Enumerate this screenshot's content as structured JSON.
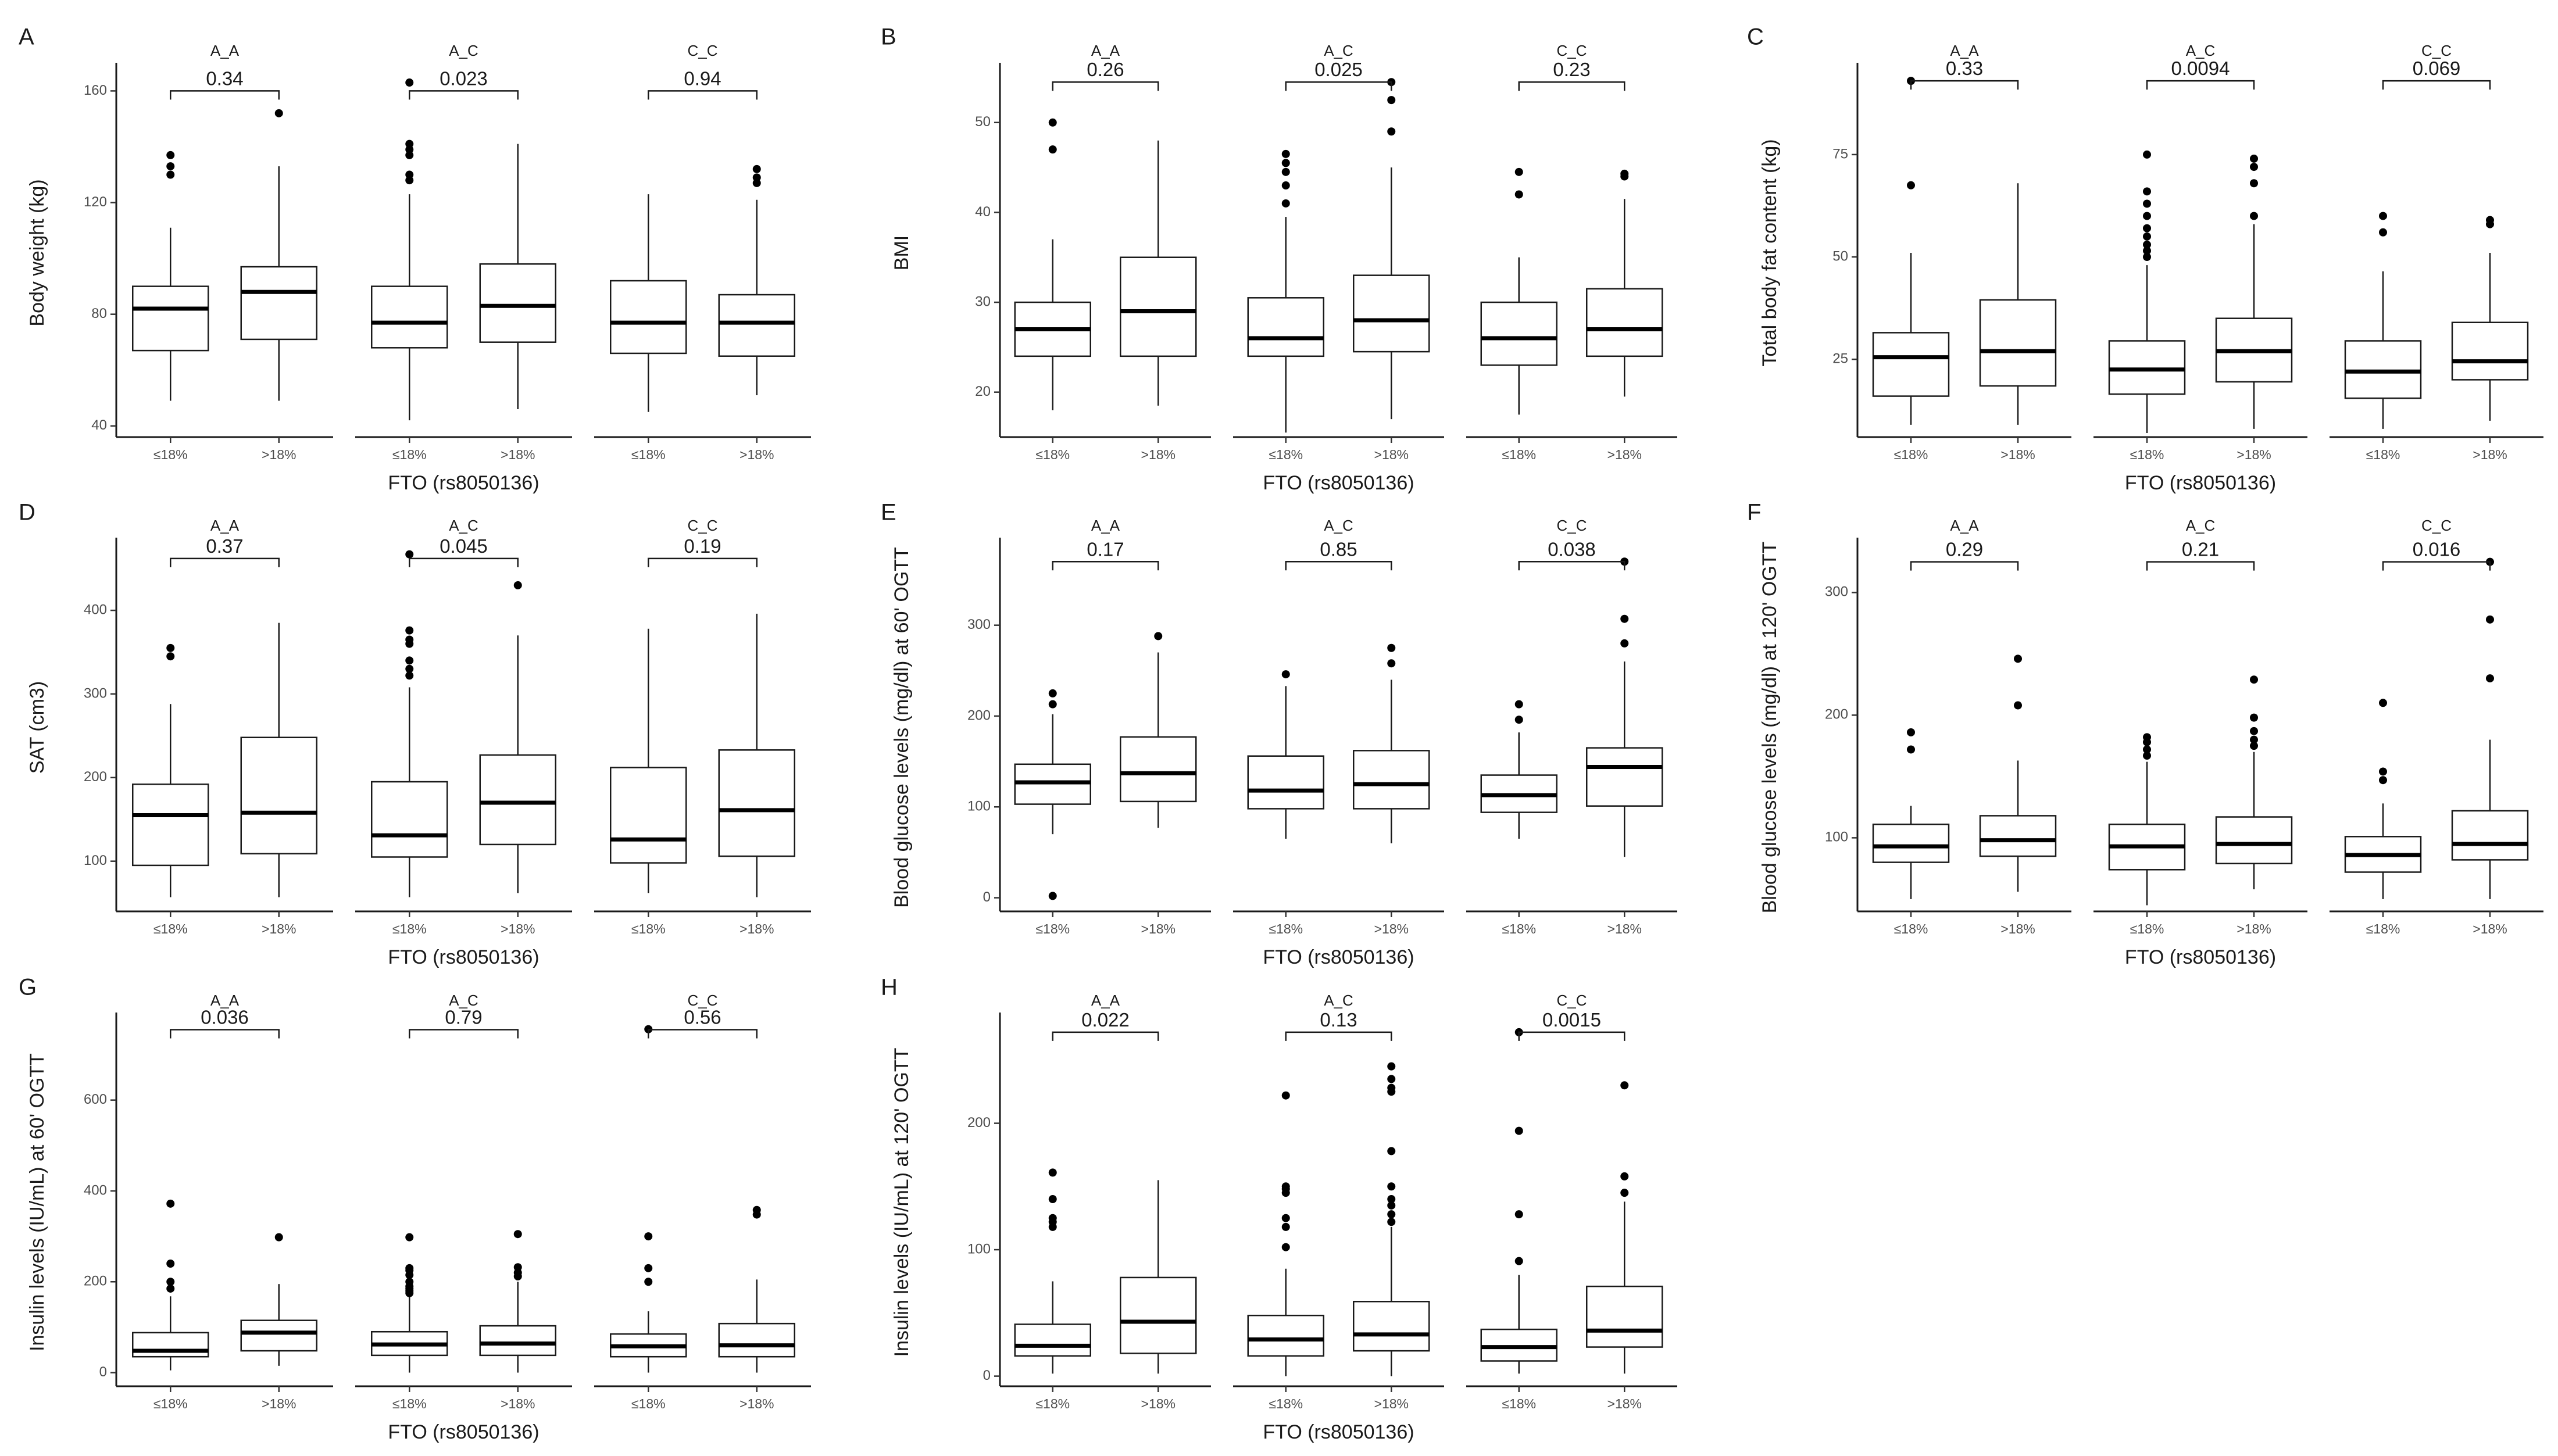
{
  "figure": {
    "x_categories": [
      "≤18%",
      ">18%"
    ],
    "xlabel": "FTO (rs8050136)",
    "facets": [
      "A_A",
      "A_C",
      "C_C"
    ]
  },
  "chart_data": [
    {
      "letter": "A",
      "type": "box",
      "ylabel": "Body weight (kg)",
      "yticks": [
        40,
        80,
        120,
        160
      ],
      "ylim": [
        36,
        168
      ],
      "groups": [
        {
          "facet": "A_A",
          "p": "0.34",
          "bracket_y": 160,
          "boxes": [
            {
              "min": 49,
              "q1": 67,
              "median": 82,
              "q3": 90,
              "max": 111,
              "outliers": [
                130,
                133,
                137
              ]
            },
            {
              "min": 49,
              "q1": 71,
              "median": 88,
              "q3": 97,
              "max": 133,
              "outliers": [
                152
              ]
            }
          ]
        },
        {
          "facet": "A_C",
          "p": "0.023",
          "bracket_y": 160,
          "boxes": [
            {
              "min": 42,
              "q1": 68,
              "median": 77,
              "q3": 90,
              "max": 123,
              "outliers": [
                128,
                130,
                137,
                139,
                141,
                163
              ]
            },
            {
              "min": 46,
              "q1": 70,
              "median": 83,
              "q3": 98,
              "max": 141,
              "outliers": []
            }
          ]
        },
        {
          "facet": "C_C",
          "p": "0.94",
          "bracket_y": 160,
          "boxes": [
            {
              "min": 45,
              "q1": 66,
              "median": 77,
              "q3": 92,
              "max": 123,
              "outliers": []
            },
            {
              "min": 51,
              "q1": 65,
              "median": 77,
              "q3": 87,
              "max": 121,
              "outliers": [
                127,
                129,
                132
              ]
            }
          ]
        }
      ]
    },
    {
      "letter": "B",
      "type": "box",
      "ylabel": "BMI",
      "yticks": [
        20,
        30,
        40,
        50
      ],
      "ylim": [
        15,
        56
      ],
      "groups": [
        {
          "facet": "A_A",
          "p": "0.26",
          "bracket_y": 54.5,
          "boxes": [
            {
              "min": 18,
              "q1": 24,
              "median": 27,
              "q3": 30,
              "max": 37,
              "outliers": [
                47,
                50
              ]
            },
            {
              "min": 18.5,
              "q1": 24,
              "median": 29,
              "q3": 35,
              "max": 48,
              "outliers": []
            }
          ]
        },
        {
          "facet": "A_C",
          "p": "0.025",
          "bracket_y": 54.5,
          "boxes": [
            {
              "min": 15.5,
              "q1": 24,
              "median": 26,
              "q3": 30.5,
              "max": 39.5,
              "outliers": [
                41,
                43,
                44.5,
                45.5,
                46.5
              ]
            },
            {
              "min": 17,
              "q1": 24.5,
              "median": 28,
              "q3": 33,
              "max": 45,
              "outliers": [
                49,
                52.5,
                54.5
              ]
            }
          ]
        },
        {
          "facet": "C_C",
          "p": "0.23",
          "bracket_y": 54.5,
          "boxes": [
            {
              "min": 17.5,
              "q1": 23,
              "median": 26,
              "q3": 30,
              "max": 35,
              "outliers": [
                42,
                44.5
              ]
            },
            {
              "min": 19.5,
              "q1": 24,
              "median": 27,
              "q3": 31.5,
              "max": 41.5,
              "outliers": [
                44,
                44.3
              ]
            }
          ]
        }
      ]
    },
    {
      "letter": "C",
      "type": "box",
      "ylabel": "Total body fat content (kg)",
      "yticks": [
        25,
        50,
        75
      ],
      "ylim": [
        6,
        96
      ],
      "groups": [
        {
          "facet": "A_A",
          "p": "0.33",
          "bracket_y": 93,
          "boxes": [
            {
              "min": 9,
              "q1": 16,
              "median": 25.5,
              "q3": 31.5,
              "max": 51,
              "outliers": [
                67.5,
                93
              ]
            },
            {
              "min": 9,
              "q1": 18.5,
              "median": 27,
              "q3": 39.5,
              "max": 68,
              "outliers": []
            }
          ]
        },
        {
          "facet": "A_C",
          "p": "0.0094",
          "bracket_y": 93,
          "boxes": [
            {
              "min": 7,
              "q1": 16.5,
              "median": 22.5,
              "q3": 29.5,
              "max": 48,
              "outliers": [
                50,
                51.5,
                53,
                55,
                57,
                60,
                63,
                66,
                75
              ]
            },
            {
              "min": 8,
              "q1": 19.5,
              "median": 27,
              "q3": 35,
              "max": 58,
              "outliers": [
                60,
                68,
                72,
                74
              ]
            }
          ]
        },
        {
          "facet": "C_C",
          "p": "0.069",
          "bracket_y": 93,
          "boxes": [
            {
              "min": 8,
              "q1": 15.5,
              "median": 22,
              "q3": 29.5,
              "max": 46.5,
              "outliers": [
                56,
                60
              ]
            },
            {
              "min": 10,
              "q1": 20,
              "median": 24.5,
              "q3": 34,
              "max": 51,
              "outliers": [
                58,
                59
              ]
            }
          ]
        }
      ]
    },
    {
      "letter": "D",
      "type": "box",
      "ylabel": "SAT (cm3)",
      "yticks": [
        100,
        200,
        300,
        400
      ],
      "ylim": [
        40,
        480
      ],
      "groups": [
        {
          "facet": "A_A",
          "p": "0.37",
          "bracket_y": 462,
          "boxes": [
            {
              "min": 57,
              "q1": 95,
              "median": 155,
              "q3": 192,
              "max": 288,
              "outliers": [
                345,
                355
              ]
            },
            {
              "min": 57,
              "q1": 109,
              "median": 158,
              "q3": 248,
              "max": 385,
              "outliers": []
            }
          ]
        },
        {
          "facet": "A_C",
          "p": "0.045",
          "bracket_y": 462,
          "boxes": [
            {
              "min": 57,
              "q1": 105,
              "median": 131,
              "q3": 195,
              "max": 308,
              "outliers": [
                322,
                330,
                340,
                360,
                365,
                376,
                467
              ]
            },
            {
              "min": 62,
              "q1": 120,
              "median": 170,
              "q3": 227,
              "max": 370,
              "outliers": [
                430
              ]
            }
          ]
        },
        {
          "facet": "C_C",
          "p": "0.19",
          "bracket_y": 462,
          "boxes": [
            {
              "min": 62,
              "q1": 98,
              "median": 126,
              "q3": 212,
              "max": 378,
              "outliers": []
            },
            {
              "min": 57,
              "q1": 106,
              "median": 161,
              "q3": 233,
              "max": 396,
              "outliers": []
            }
          ]
        }
      ]
    },
    {
      "letter": "E",
      "type": "box",
      "ylabel": "Blood glucose levels (mg/dl) at 60' OGTT",
      "yticks": [
        0,
        100,
        200,
        300
      ],
      "ylim": [
        -15,
        390
      ],
      "groups": [
        {
          "facet": "A_A",
          "p": "0.17",
          "bracket_y": 370,
          "boxes": [
            {
              "min": 70,
              "q1": 103,
              "median": 127,
              "q3": 147,
              "max": 202,
              "outliers": [
                2,
                213,
                225
              ]
            },
            {
              "min": 77,
              "q1": 106,
              "median": 137,
              "q3": 177,
              "max": 270,
              "outliers": [
                288
              ]
            }
          ]
        },
        {
          "facet": "A_C",
          "p": "0.85",
          "bracket_y": 370,
          "boxes": [
            {
              "min": 65,
              "q1": 98,
              "median": 118,
              "q3": 156,
              "max": 233,
              "outliers": [
                246
              ]
            },
            {
              "min": 60,
              "q1": 98,
              "median": 125,
              "q3": 162,
              "max": 240,
              "outliers": [
                258,
                275
              ]
            }
          ]
        },
        {
          "facet": "C_C",
          "p": "0.038",
          "bracket_y": 370,
          "boxes": [
            {
              "min": 65,
              "q1": 94,
              "median": 113,
              "q3": 135,
              "max": 182,
              "outliers": [
                196,
                213
              ]
            },
            {
              "min": 45,
              "q1": 101,
              "median": 144,
              "q3": 165,
              "max": 260,
              "outliers": [
                280,
                307,
                370
              ]
            }
          ]
        }
      ]
    },
    {
      "letter": "F",
      "type": "box",
      "ylabel": "Blood glucose levels (mg/dl) at 120' OGTT",
      "yticks": [
        100,
        200,
        300
      ],
      "ylim": [
        40,
        340
      ],
      "groups": [
        {
          "facet": "A_A",
          "p": "0.29",
          "bracket_y": 325,
          "boxes": [
            {
              "min": 50,
              "q1": 80,
              "median": 93,
              "q3": 111,
              "max": 126,
              "outliers": [
                172,
                186
              ]
            },
            {
              "min": 56,
              "q1": 85,
              "median": 98,
              "q3": 118,
              "max": 163,
              "outliers": [
                208,
                246
              ]
            }
          ]
        },
        {
          "facet": "A_C",
          "p": "0.21",
          "bracket_y": 325,
          "boxes": [
            {
              "min": 45,
              "q1": 74,
              "median": 93,
              "q3": 111,
              "max": 162,
              "outliers": [
                167,
                172,
                178,
                182
              ]
            },
            {
              "min": 58,
              "q1": 79,
              "median": 95,
              "q3": 117,
              "max": 170,
              "outliers": [
                175,
                180,
                187,
                198,
                229
              ]
            }
          ]
        },
        {
          "facet": "C_C",
          "p": "0.016",
          "bracket_y": 325,
          "boxes": [
            {
              "min": 50,
              "q1": 72,
              "median": 86,
              "q3": 101,
              "max": 128,
              "outliers": [
                147,
                154,
                210
              ]
            },
            {
              "min": 50,
              "q1": 82,
              "median": 95,
              "q3": 122,
              "max": 180,
              "outliers": [
                230,
                278,
                325
              ]
            }
          ]
        }
      ]
    },
    {
      "letter": "G",
      "type": "box",
      "ylabel": "Insulin levels (IU/mL) at 60' OGTT",
      "yticks": [
        0,
        200,
        400,
        600
      ],
      "ylim": [
        -30,
        780
      ],
      "groups": [
        {
          "facet": "A_A",
          "p": "0.036",
          "bracket_y": 755,
          "boxes": [
            {
              "min": 5,
              "q1": 35,
              "median": 48,
              "q3": 88,
              "max": 168,
              "outliers": [
                185,
                200,
                240,
                372
              ]
            },
            {
              "min": 15,
              "q1": 48,
              "median": 88,
              "q3": 115,
              "max": 195,
              "outliers": [
                298
              ]
            }
          ]
        },
        {
          "facet": "A_C",
          "p": "0.79",
          "bracket_y": 755,
          "boxes": [
            {
              "min": 0,
              "q1": 38,
              "median": 62,
              "q3": 90,
              "max": 170,
              "outliers": [
                175,
                180,
                185,
                190,
                200,
                215,
                225,
                230,
                298
              ]
            },
            {
              "min": 0,
              "q1": 38,
              "median": 64,
              "q3": 103,
              "max": 200,
              "outliers": [
                212,
                220,
                232,
                305
              ]
            }
          ]
        },
        {
          "facet": "C_C",
          "p": "0.56",
          "bracket_y": 755,
          "boxes": [
            {
              "min": 0,
              "q1": 35,
              "median": 58,
              "q3": 85,
              "max": 135,
              "outliers": [
                200,
                230,
                300,
                756
              ]
            },
            {
              "min": 0,
              "q1": 35,
              "median": 60,
              "q3": 108,
              "max": 205,
              "outliers": [
                348,
                358
              ]
            }
          ]
        }
      ]
    },
    {
      "letter": "H",
      "type": "box",
      "ylabel": "Insulin levels (IU/mL) at 120' OGTT",
      "yticks": [
        0,
        100,
        200
      ],
      "ylim": [
        -8,
        283
      ],
      "groups": [
        {
          "facet": "A_A",
          "p": "0.022",
          "bracket_y": 272,
          "boxes": [
            {
              "min": 2,
              "q1": 16,
              "median": 24,
              "q3": 41,
              "max": 75,
              "outliers": [
                118,
                122,
                125,
                140,
                161
              ]
            },
            {
              "min": 2,
              "q1": 18,
              "median": 43,
              "q3": 78,
              "max": 155,
              "outliers": []
            }
          ]
        },
        {
          "facet": "A_C",
          "p": "0.13",
          "bracket_y": 272,
          "boxes": [
            {
              "min": 0,
              "q1": 16,
              "median": 29,
              "q3": 48,
              "max": 85,
              "outliers": [
                102,
                118,
                125,
                145,
                148,
                150,
                222
              ]
            },
            {
              "min": 0,
              "q1": 20,
              "median": 33,
              "q3": 59,
              "max": 118,
              "outliers": [
                122,
                128,
                135,
                140,
                150,
                178,
                225,
                228,
                235,
                245
              ]
            }
          ]
        },
        {
          "facet": "C_C",
          "p": "0.0015",
          "bracket_y": 272,
          "boxes": [
            {
              "min": 2,
              "q1": 12,
              "median": 23,
              "q3": 37,
              "max": 80,
              "outliers": [
                91,
                128,
                194,
                272
              ]
            },
            {
              "min": 2,
              "q1": 23,
              "median": 36,
              "q3": 71,
              "max": 138,
              "outliers": [
                145,
                158,
                230
              ]
            }
          ]
        }
      ]
    }
  ]
}
